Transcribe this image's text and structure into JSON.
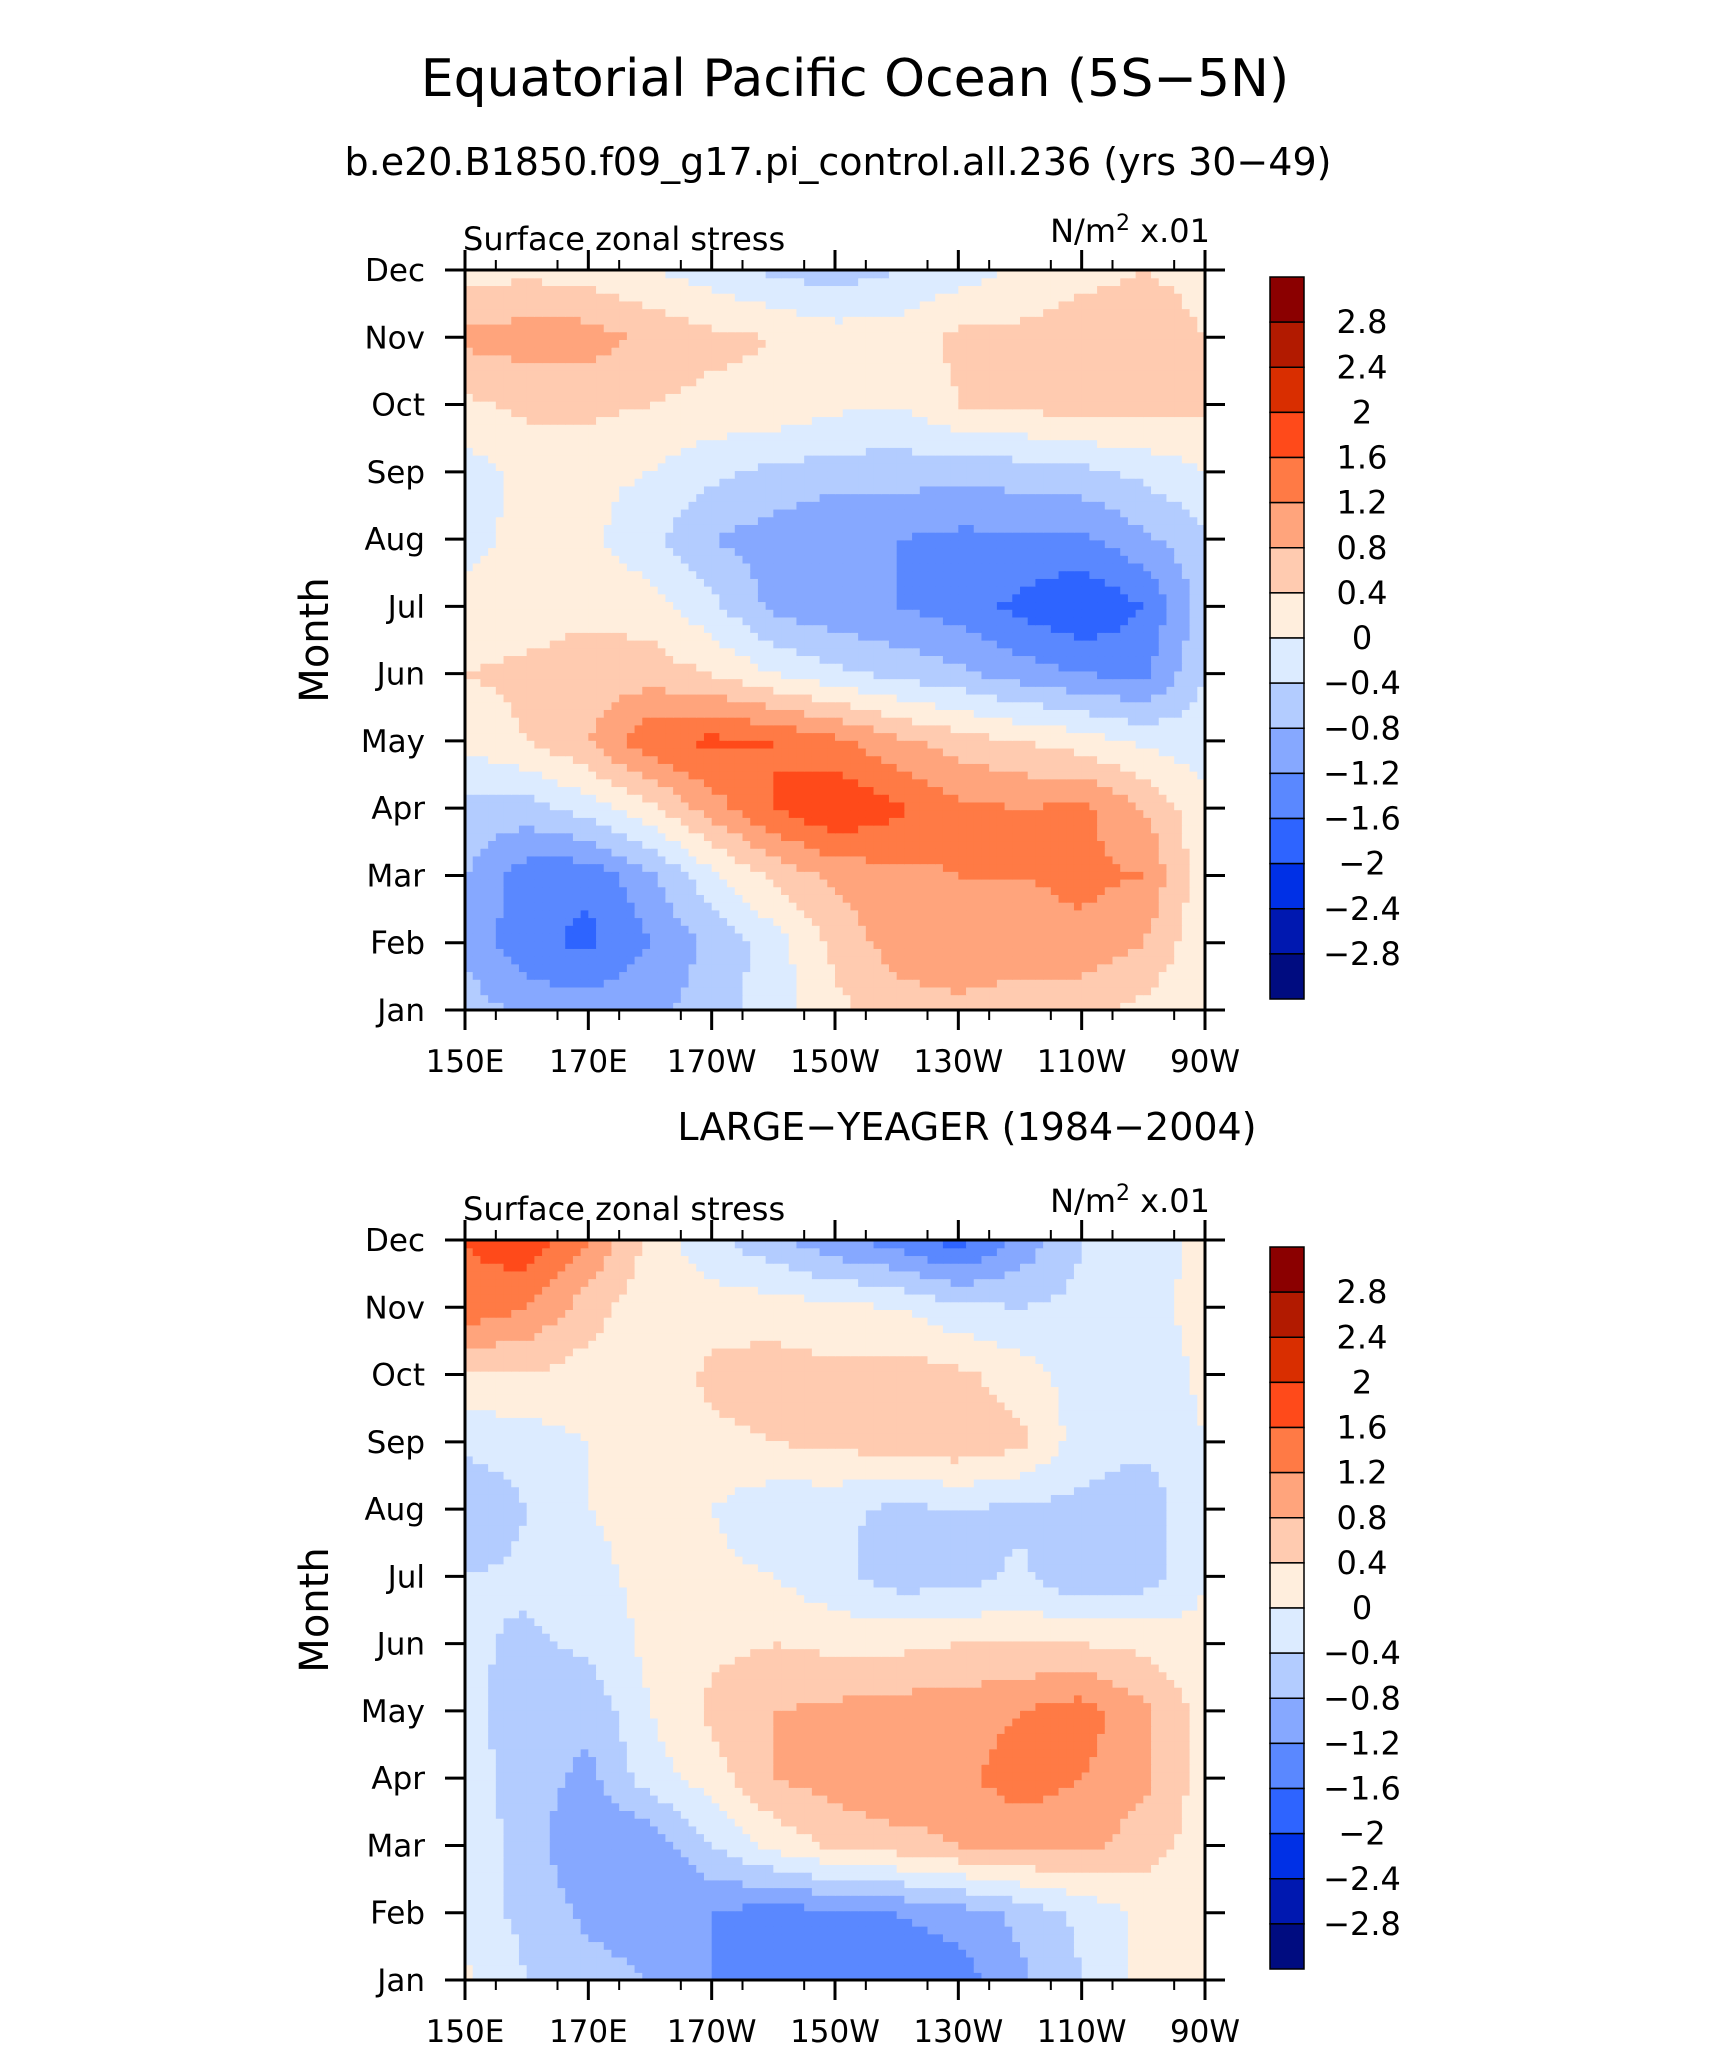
{
  "figure": {
    "title": "Equatorial Pacific Ocean (5S−5N)",
    "subtitle": "b.e20.B1850.f09_g17.pi_control.all.236 (yrs 30−49)"
  },
  "colorbar": {
    "levels": [
      "2.8",
      "2.4",
      "2",
      "1.6",
      "1.2",
      "0.8",
      "0.4",
      "0",
      "−0.4",
      "−0.8",
      "−1.2",
      "−1.6",
      "−2",
      "−2.4",
      "−2.8"
    ],
    "colors": [
      "#8b0000",
      "#b21a00",
      "#d92e00",
      "#ff4a1a",
      "#ff7a45",
      "#ffa47c",
      "#ffcbb0",
      "#ffeedd",
      "#dcebff",
      "#b3ccff",
      "#86a8ff",
      "#5a88ff",
      "#2e64ff",
      "#0030e6",
      "#0018b0",
      "#000c80"
    ]
  },
  "chart_data": [
    {
      "type": "heatmap",
      "panel_title": "",
      "left_label": "Surface zonal stress",
      "right_label_base": "N/m",
      "right_label_sup": "2",
      "right_label_suffix": " x.01",
      "ylabel": "Month",
      "xlabel": "",
      "x_ticks": [
        "150E",
        "170E",
        "170W",
        "150W",
        "130W",
        "110W",
        "90W"
      ],
      "y_ticks": [
        "Jan",
        "Feb",
        "Mar",
        "Apr",
        "May",
        "Jun",
        "Jul",
        "Aug",
        "Sep",
        "Oct",
        "Nov",
        "Dec"
      ],
      "xlim": [
        "150E",
        "90W"
      ],
      "ylim": [
        "Jan",
        "Dec"
      ],
      "x": [
        150,
        160,
        170,
        180,
        190,
        200,
        210,
        220,
        230,
        240,
        250,
        260,
        270
      ],
      "y": [
        "Jan",
        "Feb",
        "Mar",
        "Apr",
        "May",
        "Jun",
        "Jul",
        "Aug",
        "Sep",
        "Oct",
        "Nov",
        "Dec"
      ],
      "z": [
        [
          -0.6,
          -0.9,
          -1.0,
          -0.9,
          -0.6,
          -0.2,
          0.3,
          0.6,
          0.7,
          0.6,
          0.5,
          0.3,
          0.0
        ],
        [
          -0.9,
          -1.5,
          -1.7,
          -1.2,
          -0.7,
          -0.2,
          0.5,
          1.0,
          1.1,
          1.0,
          1.1,
          0.8,
          0.1
        ],
        [
          -0.8,
          -1.4,
          -1.5,
          -0.9,
          -0.1,
          0.5,
          0.9,
          1.1,
          1.2,
          1.2,
          1.3,
          1.2,
          0.1
        ],
        [
          -0.5,
          -0.6,
          -0.2,
          0.3,
          1.0,
          1.6,
          2.0,
          1.7,
          1.3,
          1.2,
          1.3,
          0.8,
          0.1
        ],
        [
          0.1,
          0.4,
          0.8,
          1.5,
          1.7,
          1.6,
          1.3,
          0.9,
          0.6,
          0.4,
          0.2,
          -0.1,
          -0.2
        ],
        [
          0.4,
          0.5,
          0.6,
          0.6,
          0.4,
          0.0,
          -0.3,
          -0.5,
          -0.7,
          -1.0,
          -1.2,
          -1.3,
          -0.4
        ],
        [
          0.1,
          0.2,
          0.3,
          0.2,
          -0.3,
          -0.9,
          -1.1,
          -1.2,
          -1.4,
          -1.7,
          -2.0,
          -1.6,
          -0.6
        ],
        [
          -0.1,
          0.1,
          0.1,
          -0.3,
          -0.8,
          -1.0,
          -1.2,
          -1.2,
          -1.3,
          -1.3,
          -1.3,
          -0.9,
          -0.5
        ],
        [
          -0.2,
          0.1,
          0.1,
          0.0,
          -0.3,
          -0.5,
          -0.6,
          -0.6,
          -0.7,
          -0.6,
          -0.5,
          -0.3,
          0.0
        ],
        [
          0.3,
          0.5,
          0.5,
          0.4,
          0.3,
          0.3,
          0.1,
          0.0,
          0.4,
          0.5,
          0.6,
          0.6,
          0.5
        ],
        [
          0.9,
          1.0,
          1.0,
          0.7,
          0.5,
          0.4,
          0.2,
          0.2,
          0.5,
          0.5,
          0.6,
          0.6,
          0.4
        ],
        [
          0.2,
          0.3,
          0.2,
          0.0,
          -0.2,
          -0.5,
          -0.6,
          -0.4,
          -0.2,
          0.1,
          0.3,
          0.4,
          0.3
        ]
      ]
    },
    {
      "type": "heatmap",
      "panel_title": "LARGE−YEAGER (1984−2004)",
      "left_label": "Surface zonal stress",
      "right_label_base": "N/m",
      "right_label_sup": "2",
      "right_label_suffix": " x.01",
      "ylabel": "Month",
      "xlabel": "",
      "x_ticks": [
        "150E",
        "170E",
        "170W",
        "150W",
        "130W",
        "110W",
        "90W"
      ],
      "y_ticks": [
        "Jan",
        "Feb",
        "Mar",
        "Apr",
        "May",
        "Jun",
        "Jul",
        "Aug",
        "Sep",
        "Oct",
        "Nov",
        "Dec"
      ],
      "xlim": [
        "150E",
        "90W"
      ],
      "ylim": [
        "Jan",
        "Dec"
      ],
      "x": [
        150,
        160,
        170,
        180,
        190,
        200,
        210,
        220,
        230,
        240,
        250,
        260,
        270
      ],
      "y": [
        "Jan",
        "Feb",
        "Mar",
        "Apr",
        "May",
        "Jun",
        "Jul",
        "Aug",
        "Sep",
        "Oct",
        "Nov",
        "Dec"
      ],
      "z": [
        [
          0.1,
          -0.4,
          -0.6,
          -0.8,
          -1.2,
          -1.5,
          -1.3,
          -1.6,
          -1.4,
          -0.9,
          -0.4,
          0.1,
          0.2
        ],
        [
          -0.2,
          -0.5,
          -0.9,
          -1.1,
          -1.2,
          -1.4,
          -1.3,
          -1.2,
          -1.0,
          -0.7,
          -0.3,
          0.1,
          0.2
        ],
        [
          -0.1,
          -0.6,
          -1.2,
          -1.1,
          -0.4,
          0.1,
          0.5,
          0.6,
          0.8,
          0.9,
          0.9,
          0.6,
          0.2
        ],
        [
          -0.2,
          -0.6,
          -0.9,
          -0.2,
          0.2,
          0.8,
          1.0,
          1.2,
          1.1,
          1.4,
          1.2,
          0.9,
          0.2
        ],
        [
          -0.3,
          -0.6,
          -0.7,
          0.0,
          0.5,
          0.8,
          0.9,
          1.0,
          1.0,
          1.2,
          1.4,
          0.9,
          0.2
        ],
        [
          -0.3,
          -0.5,
          -0.3,
          0.1,
          0.3,
          0.4,
          0.3,
          0.3,
          0.4,
          0.4,
          0.4,
          0.3,
          0.1
        ],
        [
          -0.4,
          -0.3,
          -0.1,
          0.1,
          0.1,
          0.0,
          -0.3,
          -0.6,
          -0.6,
          -0.3,
          -0.8,
          -0.6,
          0.0
        ],
        [
          -0.8,
          -0.4,
          0.0,
          0.1,
          0.0,
          -0.3,
          -0.3,
          -0.5,
          -0.4,
          -0.5,
          -0.5,
          -0.7,
          0.0
        ],
        [
          -0.3,
          -0.2,
          0.0,
          0.1,
          0.3,
          0.4,
          0.5,
          0.6,
          0.7,
          0.5,
          -0.2,
          -0.3,
          0.0
        ],
        [
          0.3,
          0.4,
          0.2,
          0.1,
          0.5,
          0.6,
          0.5,
          0.6,
          0.5,
          0.2,
          -0.2,
          -0.3,
          0.1
        ],
        [
          1.5,
          1.2,
          0.6,
          0.1,
          0.2,
          0.2,
          0.1,
          0.0,
          -0.3,
          -0.4,
          -0.3,
          -0.2,
          0.2
        ],
        [
          1.6,
          1.9,
          1.2,
          0.3,
          -0.3,
          -0.7,
          -1.1,
          -1.4,
          -1.8,
          -1.1,
          -0.4,
          -0.2,
          0.1
        ]
      ]
    }
  ]
}
